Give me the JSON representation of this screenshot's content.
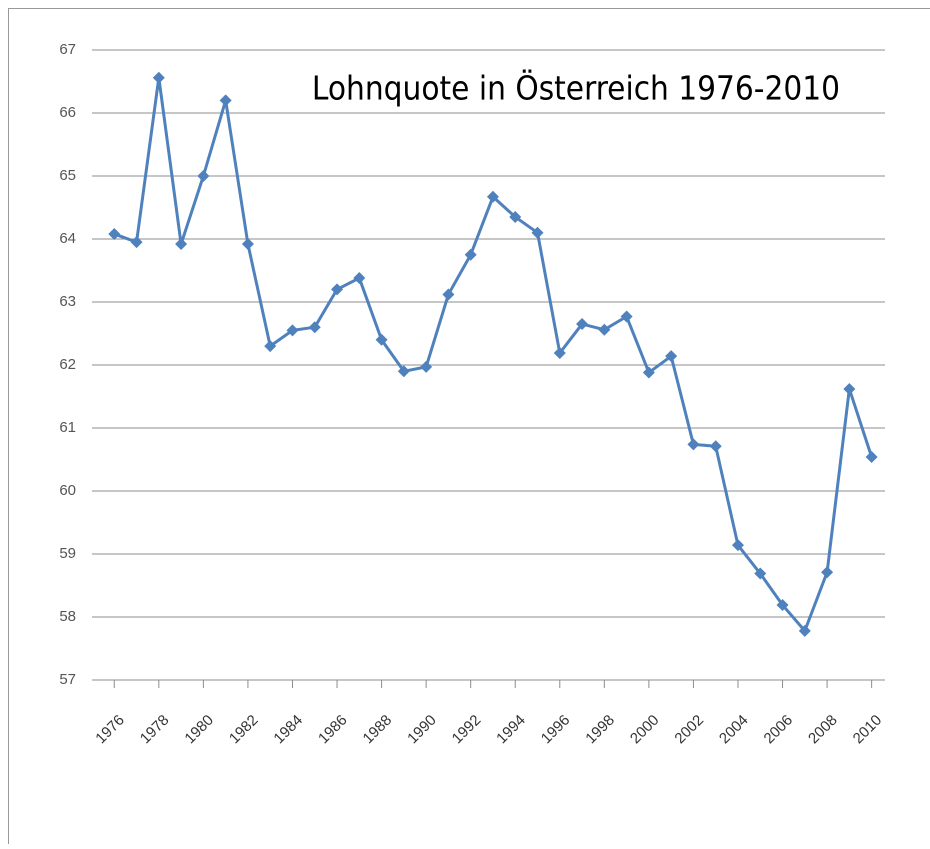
{
  "chart_data": {
    "type": "line",
    "title": "Lohnquote in Österreich 1976-2010",
    "x": [
      1976,
      1977,
      1978,
      1979,
      1980,
      1981,
      1982,
      1983,
      1984,
      1985,
      1986,
      1987,
      1988,
      1989,
      1990,
      1991,
      1992,
      1993,
      1994,
      1995,
      1996,
      1997,
      1998,
      1999,
      2000,
      2001,
      2002,
      2003,
      2004,
      2005,
      2006,
      2007,
      2008,
      2009,
      2010
    ],
    "series": [
      {
        "name": null,
        "color": "#4f81bd",
        "values": [
          64.08,
          63.95,
          66.56,
          63.92,
          65.0,
          66.2,
          63.92,
          62.3,
          62.55,
          62.6,
          63.2,
          63.38,
          62.4,
          61.9,
          61.97,
          63.12,
          63.75,
          64.67,
          64.35,
          64.1,
          62.19,
          62.65,
          62.56,
          62.77,
          61.88,
          62.14,
          60.74,
          60.71,
          59.14,
          58.69,
          58.19,
          57.78,
          58.71,
          61.62,
          60.54
        ]
      }
    ],
    "xlim": [
      1975,
      2010.6
    ],
    "xticks": [
      1976,
      1978,
      1980,
      1982,
      1984,
      1986,
      1988,
      1990,
      1992,
      1994,
      1996,
      1998,
      2000,
      2002,
      2004,
      2006,
      2008,
      2010
    ],
    "ylim": [
      57,
      67
    ],
    "yticks": [
      57,
      58,
      59,
      60,
      61,
      62,
      63,
      64,
      65,
      66,
      67
    ],
    "grid": true
  }
}
